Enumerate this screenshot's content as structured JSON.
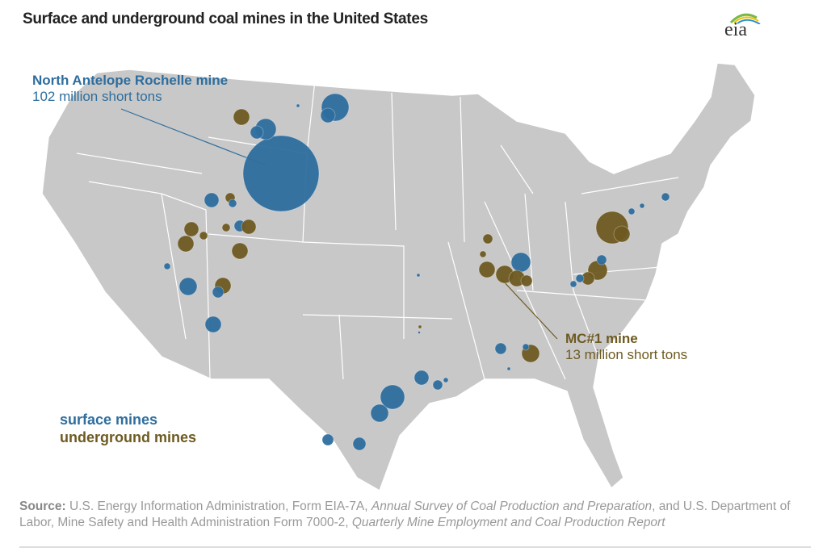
{
  "title": "Surface and underground coal mines in the United States",
  "logo": "eia",
  "colors": {
    "surface": "#2e6e9e",
    "underground": "#6e5a21",
    "land": "#c8c8c8",
    "border": "#ffffff"
  },
  "annotations": {
    "surface": {
      "name": "North Antelope Rochelle mine",
      "value": "102 million short tons"
    },
    "underground": {
      "name": "MC#1 mine",
      "value": "13 million short tons"
    }
  },
  "legend": {
    "surface": "surface mines",
    "underground": "underground mines"
  },
  "source": {
    "label": "Source:",
    "t1": " U.S. Energy Information Administration, Form EIA-7A, ",
    "i1": "Annual Survey of Coal Production and Preparation",
    "t2": ", and U.S. Department of Labor, Mine Safety and Health Administration Form 7000-2, ",
    "i2": "Quarterly Mine Employment and Coal Production Report"
  }
}
